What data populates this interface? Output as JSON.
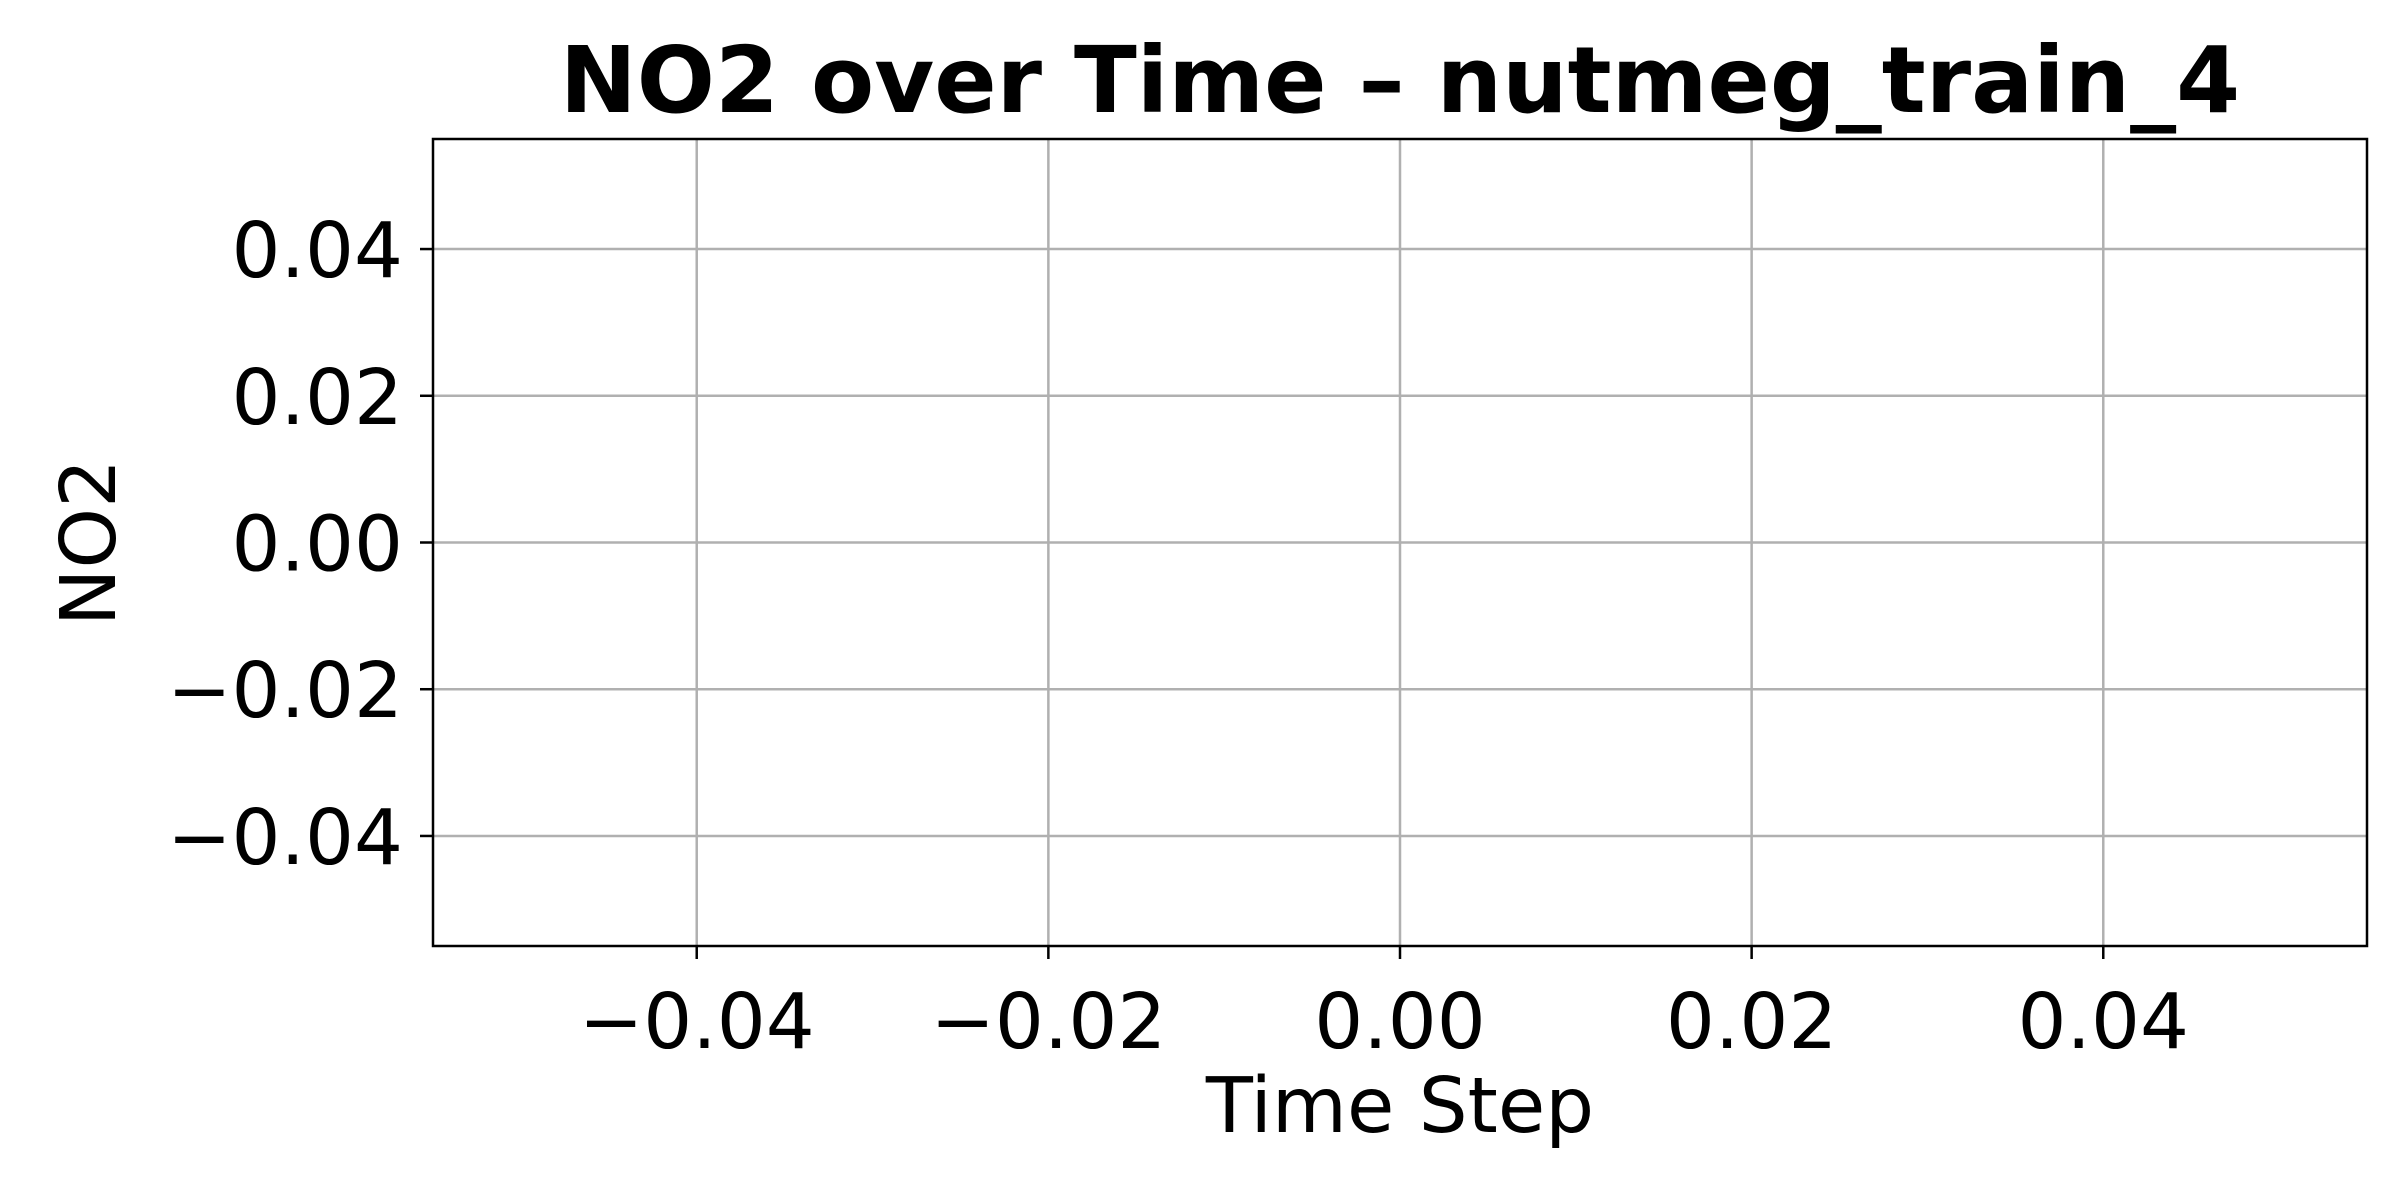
{
  "chart_data": {
    "type": "line",
    "title": "NO2 over Time – nutmeg_train_4",
    "xlabel": "Time Step",
    "ylabel": "NO2",
    "xlim": [
      -0.055,
      0.055
    ],
    "ylim": [
      -0.055,
      0.055
    ],
    "x_ticks": [
      -0.04,
      -0.02,
      0.0,
      0.02,
      0.04
    ],
    "x_tick_labels": [
      "−0.04",
      "−0.02",
      "0.00",
      "0.02",
      "0.04"
    ],
    "y_ticks": [
      -0.04,
      -0.02,
      0.0,
      0.02,
      0.04
    ],
    "y_tick_labels": [
      "−0.04",
      "−0.02",
      "0.00",
      "0.02",
      "0.04"
    ],
    "grid": true,
    "series": [
      {
        "x": [],
        "y": []
      }
    ],
    "colors": {
      "background": "#ffffff",
      "grid": "#b0b0b0",
      "axes": "#000000",
      "text": "#000000"
    }
  }
}
